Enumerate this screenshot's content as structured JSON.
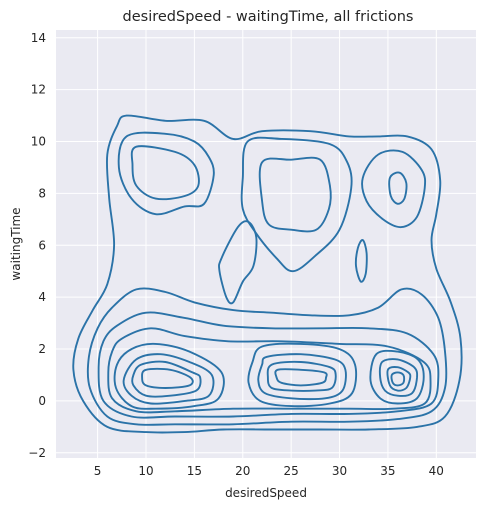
{
  "chart_data": {
    "type": "kde-contour",
    "title": "desiredSpeed - waitingTime, all frictions",
    "xlabel": "desiredSpeed",
    "ylabel": "waitingTime",
    "xlim": [
      0.7,
      44.1
    ],
    "ylim": [
      -2.2,
      14.3
    ],
    "xticks": [
      5,
      10,
      15,
      20,
      25,
      30,
      35,
      40
    ],
    "yticks": [
      -2,
      0,
      2,
      4,
      6,
      8,
      10,
      12,
      14
    ],
    "grid": true,
    "background": "#eaeaf2",
    "line_color": "#2b73a8",
    "contours": [
      [
        [
          8,
          11
        ],
        [
          12,
          10.8
        ],
        [
          16,
          10.8
        ],
        [
          19,
          10.1
        ],
        [
          22,
          10.4
        ],
        [
          27,
          10.4
        ],
        [
          31,
          10.2
        ],
        [
          34,
          10.2
        ],
        [
          37,
          10.2
        ],
        [
          39.5,
          9.7
        ],
        [
          40.4,
          8.5
        ],
        [
          40,
          7.2
        ],
        [
          39.5,
          6.2
        ],
        [
          40,
          5.1
        ],
        [
          41.5,
          3.8
        ],
        [
          42.5,
          2.4
        ],
        [
          42.4,
          0.8
        ],
        [
          40.9,
          -0.6
        ],
        [
          38,
          -1
        ],
        [
          33,
          -1.1
        ],
        [
          28,
          -1.1
        ],
        [
          23,
          -1.1
        ],
        [
          18,
          -1.1
        ],
        [
          14,
          -1.2
        ],
        [
          10,
          -1.2
        ],
        [
          6,
          -1
        ],
        [
          3.5,
          0
        ],
        [
          2.5,
          1.2
        ],
        [
          3,
          2.4
        ],
        [
          4.5,
          3.5
        ],
        [
          6,
          4.5
        ],
        [
          6.7,
          6
        ],
        [
          6.2,
          7.8
        ],
        [
          6,
          9.5
        ],
        [
          7,
          10.6
        ],
        [
          8,
          11
        ]
      ],
      [
        [
          8,
          10.2
        ],
        [
          12,
          10.3
        ],
        [
          15,
          10
        ],
        [
          16.5,
          9.4
        ],
        [
          17,
          8.7
        ],
        [
          16,
          7.6
        ],
        [
          14,
          7.5
        ],
        [
          11,
          7.2
        ],
        [
          8.5,
          7.8
        ],
        [
          7.2,
          9
        ],
        [
          8,
          10.2
        ]
      ],
      [
        [
          9,
          9.8
        ],
        [
          13,
          9.6
        ],
        [
          15,
          9.1
        ],
        [
          15.4,
          8.3
        ],
        [
          14,
          7.9
        ],
        [
          11,
          7.8
        ],
        [
          9,
          8.3
        ],
        [
          8.6,
          9.1
        ],
        [
          9,
          9.8
        ]
      ],
      [
        [
          20.5,
          10
        ],
        [
          24,
          10.1
        ],
        [
          29,
          9.9
        ],
        [
          30.8,
          9.2
        ],
        [
          31.2,
          8.2
        ],
        [
          30,
          6.6
        ],
        [
          27.5,
          5.6
        ],
        [
          25.2,
          5
        ],
        [
          23.5,
          5.5
        ],
        [
          21.3,
          6.5
        ],
        [
          20,
          7.4
        ],
        [
          20,
          8.6
        ],
        [
          20.5,
          10
        ]
      ],
      [
        [
          22,
          9.2
        ],
        [
          25,
          9.3
        ],
        [
          28,
          9.3
        ],
        [
          29,
          8.3
        ],
        [
          28.9,
          7.4
        ],
        [
          27.6,
          6.6
        ],
        [
          25,
          6.6
        ],
        [
          22.7,
          6.8
        ],
        [
          22,
          7.7
        ],
        [
          22,
          9.2
        ]
      ],
      [
        [
          32.4,
          8.6
        ],
        [
          34,
          9.5
        ],
        [
          36.5,
          9.6
        ],
        [
          38.5,
          8.9
        ],
        [
          38.8,
          8.2
        ],
        [
          38,
          7.1
        ],
        [
          36.4,
          6.7
        ],
        [
          34.5,
          7
        ],
        [
          32.8,
          7.7
        ],
        [
          32.4,
          8.6
        ]
      ],
      [
        [
          35.2,
          8.6
        ],
        [
          36.2,
          8.8
        ],
        [
          36.9,
          8.4
        ],
        [
          36.7,
          7.8
        ],
        [
          36,
          7.6
        ],
        [
          35.3,
          7.9
        ],
        [
          35.2,
          8.6
        ]
      ],
      [
        [
          31.9,
          5.9
        ],
        [
          32.4,
          6.2
        ],
        [
          32.8,
          5.7
        ],
        [
          32.7,
          4.9
        ],
        [
          32.2,
          4.6
        ],
        [
          31.7,
          5.2
        ],
        [
          31.9,
          5.9
        ]
      ],
      [
        [
          17.8,
          5.5
        ],
        [
          19.5,
          6.7
        ],
        [
          20.6,
          6.9
        ],
        [
          21.4,
          6.3
        ],
        [
          21.1,
          5.2
        ],
        [
          20,
          4.6
        ],
        [
          19,
          3.8
        ],
        [
          18.3,
          4
        ],
        [
          17.6,
          5
        ],
        [
          17.8,
          5.5
        ]
      ],
      [
        [
          6.5,
          3.6
        ],
        [
          9,
          4.3
        ],
        [
          12,
          4.2
        ],
        [
          15,
          3.8
        ],
        [
          19,
          3.5
        ],
        [
          23,
          3.4
        ],
        [
          27,
          3.3
        ],
        [
          31,
          3.3
        ],
        [
          34,
          3.6
        ],
        [
          36.4,
          4.3
        ],
        [
          38.5,
          4.1
        ],
        [
          40.2,
          3.2
        ],
        [
          40.9,
          1.9
        ],
        [
          40.9,
          0.5
        ],
        [
          39.5,
          -0.4
        ],
        [
          36,
          -0.7
        ],
        [
          31,
          -0.8
        ],
        [
          25,
          -0.8
        ],
        [
          19,
          -0.9
        ],
        [
          13,
          -0.9
        ],
        [
          9,
          -0.9
        ],
        [
          6,
          -0.6
        ],
        [
          4.2,
          0.5
        ],
        [
          4.1,
          1.7
        ],
        [
          5,
          2.8
        ],
        [
          6.5,
          3.6
        ]
      ],
      [
        [
          7,
          2.9
        ],
        [
          10,
          3.4
        ],
        [
          14,
          3.2
        ],
        [
          18,
          2.9
        ],
        [
          23,
          2.8
        ],
        [
          28,
          2.8
        ],
        [
          33,
          2.8
        ],
        [
          37,
          2.6
        ],
        [
          39.7,
          1.8
        ],
        [
          40.2,
          0.9
        ],
        [
          39.5,
          -0.1
        ],
        [
          36,
          -0.4
        ],
        [
          31,
          -0.5
        ],
        [
          25,
          -0.5
        ],
        [
          19,
          -0.6
        ],
        [
          13,
          -0.6
        ],
        [
          8.5,
          -0.6
        ],
        [
          5.6,
          0
        ],
        [
          5.1,
          1.3
        ],
        [
          5.6,
          2.3
        ],
        [
          7,
          2.9
        ]
      ],
      [
        [
          7.5,
          2.4
        ],
        [
          10.5,
          2.8
        ],
        [
          14,
          2.5
        ],
        [
          18.5,
          2.3
        ],
        [
          24,
          2.3
        ],
        [
          30,
          2.2
        ],
        [
          35,
          2.1
        ],
        [
          38.7,
          1.5
        ],
        [
          39.4,
          0.8
        ],
        [
          38.8,
          -0.1
        ],
        [
          35.5,
          -0.3
        ],
        [
          31,
          -0.3
        ],
        [
          25,
          -0.3
        ],
        [
          19,
          -0.3
        ],
        [
          13,
          -0.4
        ],
        [
          9,
          -0.4
        ],
        [
          6.5,
          0.1
        ],
        [
          6.1,
          1.1
        ],
        [
          6.5,
          1.9
        ],
        [
          7.5,
          2.4
        ]
      ],
      [
        [
          8.5,
          2
        ],
        [
          11,
          2.2
        ],
        [
          14.5,
          1.9
        ],
        [
          17.8,
          1.1
        ],
        [
          17.5,
          0.1
        ],
        [
          15,
          -0.2
        ],
        [
          11,
          -0.3
        ],
        [
          8.5,
          -0.2
        ],
        [
          6.9,
          0.5
        ],
        [
          7,
          1.4
        ],
        [
          8.5,
          2
        ]
      ],
      [
        [
          9,
          1.6
        ],
        [
          11.5,
          1.8
        ],
        [
          14.5,
          1.5
        ],
        [
          16.8,
          1
        ],
        [
          16.5,
          0.2
        ],
        [
          14,
          0
        ],
        [
          10.5,
          -0.1
        ],
        [
          8.5,
          0.2
        ],
        [
          7.7,
          0.8
        ],
        [
          9,
          1.6
        ]
      ],
      [
        [
          9.5,
          1.4
        ],
        [
          12,
          1.5
        ],
        [
          14.8,
          1.1
        ],
        [
          15.6,
          0.9
        ],
        [
          15.2,
          0.4
        ],
        [
          12.5,
          0.2
        ],
        [
          10,
          0.2
        ],
        [
          8.7,
          0.6
        ],
        [
          8.7,
          1
        ],
        [
          9.5,
          1.4
        ]
      ],
      [
        [
          10,
          1.2
        ],
        [
          12.5,
          1.2
        ],
        [
          14.6,
          0.9
        ],
        [
          14.5,
          0.6
        ],
        [
          12,
          0.5
        ],
        [
          10,
          0.6
        ],
        [
          9.6,
          0.9
        ],
        [
          10,
          1.2
        ]
      ],
      [
        [
          22,
          2.1
        ],
        [
          26,
          2.2
        ],
        [
          30,
          2
        ],
        [
          31.6,
          1.4
        ],
        [
          31.3,
          0.3
        ],
        [
          29,
          -0.1
        ],
        [
          25,
          -0.2
        ],
        [
          21.8,
          0
        ],
        [
          20.6,
          0.7
        ],
        [
          21,
          1.5
        ],
        [
          22,
          2.1
        ]
      ],
      [
        [
          22.5,
          1.7
        ],
        [
          26,
          1.8
        ],
        [
          29.5,
          1.6
        ],
        [
          30.6,
          1.2
        ],
        [
          30.3,
          0.4
        ],
        [
          28.5,
          0.1
        ],
        [
          25,
          0.1
        ],
        [
          22.3,
          0.3
        ],
        [
          21.6,
          0.8
        ],
        [
          22,
          1.4
        ],
        [
          22.5,
          1.7
        ]
      ],
      [
        [
          23,
          1.4
        ],
        [
          26,
          1.5
        ],
        [
          29,
          1.3
        ],
        [
          29.6,
          1
        ],
        [
          29.2,
          0.5
        ],
        [
          27.5,
          0.4
        ],
        [
          25,
          0.4
        ],
        [
          23,
          0.5
        ],
        [
          22.6,
          0.9
        ],
        [
          23,
          1.4
        ]
      ],
      [
        [
          23.6,
          1.2
        ],
        [
          26,
          1.2
        ],
        [
          28.4,
          1.1
        ],
        [
          28.6,
          0.9
        ],
        [
          28.2,
          0.7
        ],
        [
          26,
          0.6
        ],
        [
          24,
          0.7
        ],
        [
          23.5,
          0.9
        ],
        [
          23.6,
          1.2
        ]
      ],
      [
        [
          33.8,
          1.8
        ],
        [
          36,
          1.9
        ],
        [
          38.1,
          1.6
        ],
        [
          38.7,
          0.9
        ],
        [
          38,
          0.1
        ],
        [
          36,
          -0.1
        ],
        [
          34.2,
          0.1
        ],
        [
          33.2,
          0.8
        ],
        [
          33.8,
          1.8
        ]
      ],
      [
        [
          34.4,
          1.5
        ],
        [
          36,
          1.6
        ],
        [
          37.7,
          1.3
        ],
        [
          38,
          0.9
        ],
        [
          37.5,
          0.3
        ],
        [
          36,
          0.2
        ],
        [
          34.7,
          0.4
        ],
        [
          34.2,
          0.9
        ],
        [
          34.4,
          1.5
        ]
      ],
      [
        [
          35,
          1.2
        ],
        [
          36,
          1.3
        ],
        [
          37.1,
          1.1
        ],
        [
          37.3,
          0.9
        ],
        [
          36.9,
          0.5
        ],
        [
          36,
          0.4
        ],
        [
          35.2,
          0.6
        ],
        [
          35,
          1.2
        ]
      ],
      [
        [
          35.4,
          1
        ],
        [
          36,
          1.1
        ],
        [
          36.6,
          1
        ],
        [
          36.6,
          0.7
        ],
        [
          36,
          0.6
        ],
        [
          35.5,
          0.7
        ],
        [
          35.4,
          1
        ]
      ]
    ]
  }
}
